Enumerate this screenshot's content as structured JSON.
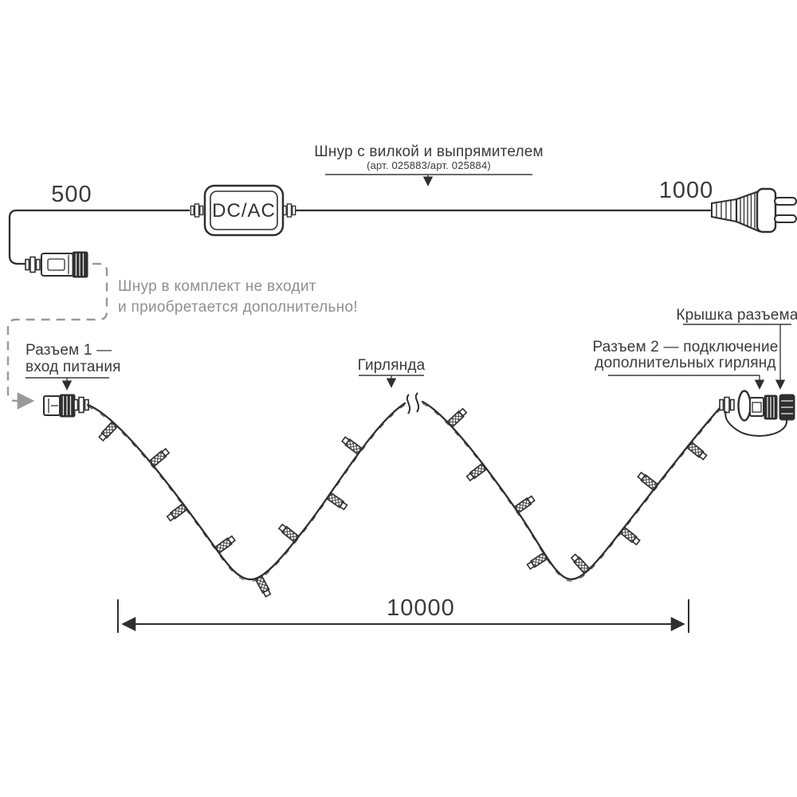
{
  "cord": {
    "callout_title": "Шнур с вилкой и выпрямителем",
    "callout_subtitle": "(арт. 025883/арт. 025884)",
    "adapter_label": "DC/AC",
    "length_left": "500",
    "length_right": "1000",
    "note_line1": "Шнур в комплект не входит",
    "note_line2": "и приобретается дополнительно!"
  },
  "garland": {
    "connector1_label_line1": "Разъем 1 —",
    "connector1_label_line2": "вход питания",
    "string_label": "Гирлянда",
    "connector2_label_line1": "Разъем 2 — подключение",
    "connector2_label_line2": "дополнительных гирлянд",
    "cap_label": "Крышка разъема",
    "total_length": "10000"
  },
  "colors": {
    "line": "#2f2f2f",
    "text": "#3a3a3a",
    "note_text": "#8f8f8f",
    "dashed_line": "#999999",
    "background": "#ffffff"
  }
}
